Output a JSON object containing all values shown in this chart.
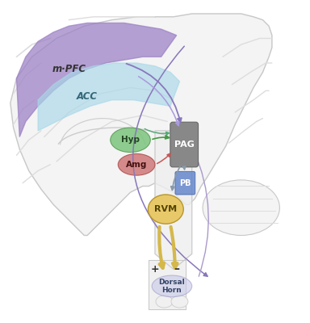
{
  "background": "#ffffff",
  "mPFC_color": "#9b7fc4",
  "mPFC_alpha": 0.72,
  "ACC_color": "#a8d8e8",
  "ACC_alpha": 0.65,
  "Hyp_color": "#7cc47c",
  "Hyp_alpha": 0.85,
  "Amg_color": "#cc7070",
  "Amg_alpha": 0.8,
  "PAG_color": "#888888",
  "PB_color": "#6688cc",
  "PB_alpha": 0.85,
  "RVM_color": "#e8c96a",
  "DH_color": "#c8c8e8",
  "DH_alpha": 0.6,
  "brain_fill": "#f4f4f4",
  "brain_edge": "#c8c8c8",
  "gyri_color": "#dddddd",
  "arrow_purple": "#8877bb",
  "arrow_green": "#449944",
  "arrow_teal": "#44aaaa",
  "arrow_yellow": "#d4b84a",
  "arrow_gray": "#8899aa",
  "labels": {
    "mPFC": "m·PFC",
    "ACC": "ACC",
    "Hyp": "Hyp",
    "Amg": "Amg",
    "PAG": "PAG",
    "PB": "PB",
    "RVM": "RVM",
    "DH": "Dorsal\nHorn",
    "plus": "+",
    "minus": "–"
  },
  "figw": 3.84,
  "figh": 4.0,
  "dpi": 100
}
